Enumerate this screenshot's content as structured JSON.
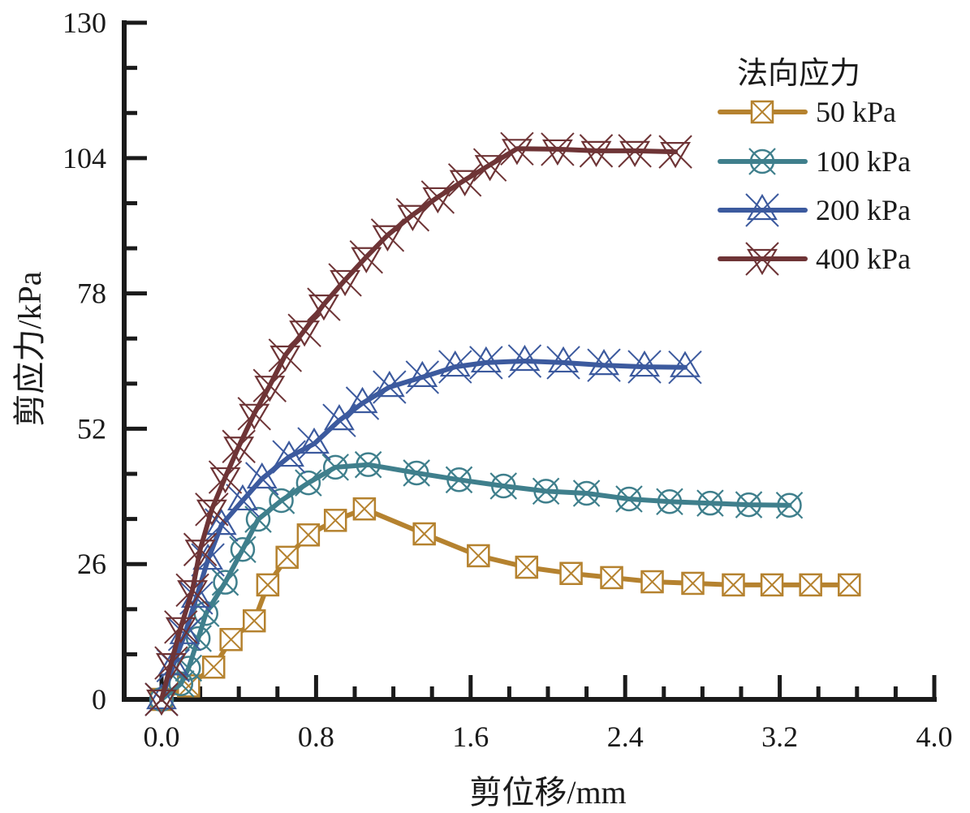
{
  "chart_data": {
    "type": "line",
    "title": "",
    "xlabel": "剪位移/mm",
    "ylabel": "剪应力/kPa",
    "xlim": [
      -0.2,
      4.0
    ],
    "ylim": [
      0,
      130
    ],
    "xticks": [
      0.0,
      0.8,
      1.6,
      2.4,
      3.2,
      4.0
    ],
    "xtick_labels": [
      "0.0",
      "0.8",
      "1.6",
      "2.4",
      "3.2",
      "4.0"
    ],
    "x_minor_step": 0.2,
    "yticks": [
      0,
      26,
      52,
      78,
      104,
      130
    ],
    "ytick_labels": [
      "0",
      "26",
      "52",
      "78",
      "104",
      "130"
    ],
    "y_minor_step": 8.6667,
    "grid": false,
    "legend": {
      "title": "法向应力",
      "placement": "top-right"
    },
    "series": [
      {
        "name": "50 kPa",
        "color": "#b5822f",
        "marker": "square-x",
        "x": [
          0.0,
          0.14,
          0.27,
          0.36,
          0.48,
          0.55,
          0.65,
          0.76,
          0.9,
          1.05,
          1.36,
          1.64,
          1.89,
          2.12,
          2.33,
          2.54,
          2.75,
          2.96,
          3.16,
          3.36,
          3.56
        ],
        "y": [
          0.0,
          2.6,
          6.2,
          11.5,
          15.1,
          22.0,
          27.3,
          31.6,
          34.4,
          36.6,
          31.8,
          27.6,
          25.4,
          24.2,
          23.4,
          22.6,
          22.3,
          22.0,
          22.0,
          22.0,
          22.0
        ]
      },
      {
        "name": "100 kPa",
        "color": "#3f7f8c",
        "marker": "circle-x",
        "x": [
          0.0,
          0.1,
          0.14,
          0.19,
          0.23,
          0.33,
          0.42,
          0.5,
          0.62,
          0.76,
          0.9,
          1.07,
          1.32,
          1.54,
          1.77,
          1.99,
          2.2,
          2.42,
          2.63,
          2.84,
          3.04,
          3.25
        ],
        "y": [
          0.0,
          3.0,
          6.0,
          11.7,
          16.5,
          22.5,
          28.8,
          34.6,
          38.2,
          41.6,
          44.6,
          45.1,
          43.5,
          42.2,
          41.0,
          40.0,
          39.6,
          38.5,
          38.0,
          37.7,
          37.4,
          37.3
        ]
      },
      {
        "name": "200 kPa",
        "color": "#3c5a9e",
        "marker": "triangle-x",
        "x": [
          0.0,
          0.06,
          0.12,
          0.18,
          0.24,
          0.31,
          0.42,
          0.52,
          0.66,
          0.79,
          0.92,
          1.04,
          1.18,
          1.35,
          1.52,
          1.68,
          1.88,
          2.08,
          2.29,
          2.5,
          2.71
        ],
        "y": [
          0.0,
          6.5,
          12.5,
          19.5,
          26.8,
          33.5,
          38.2,
          42.4,
          46.6,
          49.1,
          53.6,
          56.9,
          60.0,
          61.9,
          63.9,
          64.7,
          65.0,
          64.7,
          64.2,
          63.9,
          63.8
        ]
      },
      {
        "name": "400 kPa",
        "color": "#6e3436",
        "marker": "inverted-triangle-x",
        "x": [
          0.0,
          0.05,
          0.1,
          0.16,
          0.2,
          0.26,
          0.33,
          0.4,
          0.48,
          0.56,
          0.64,
          0.74,
          0.84,
          0.95,
          1.06,
          1.17,
          1.3,
          1.43,
          1.57,
          1.7,
          1.84,
          2.05,
          2.25,
          2.45,
          2.66
        ],
        "y": [
          0.0,
          7.0,
          13.9,
          21.0,
          28.8,
          36.5,
          42.7,
          48.6,
          54.9,
          60.3,
          66.1,
          70.9,
          75.9,
          80.6,
          85.0,
          89.2,
          93.1,
          96.5,
          99.8,
          102.7,
          105.8,
          105.7,
          105.4,
          105.4,
          105.2
        ]
      }
    ]
  }
}
